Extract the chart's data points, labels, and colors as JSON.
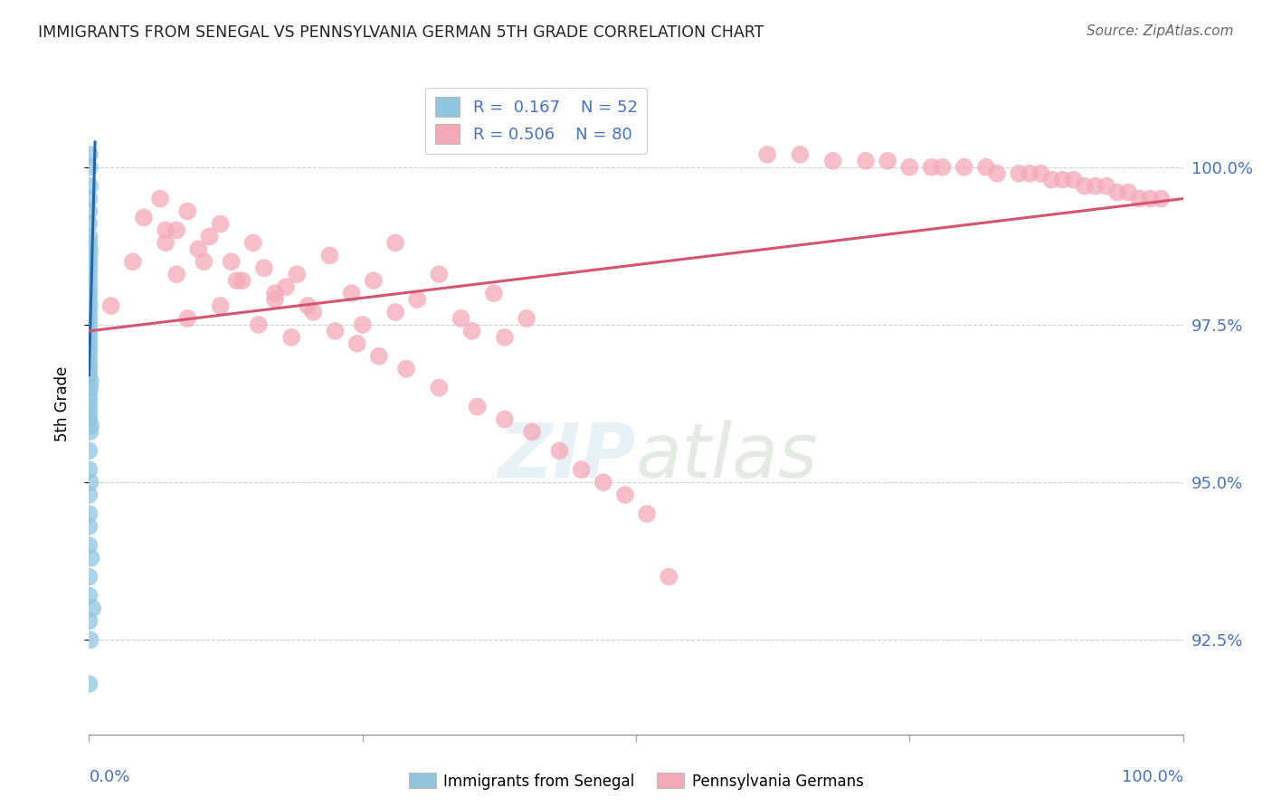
{
  "title": "IMMIGRANTS FROM SENEGAL VS PENNSYLVANIA GERMAN 5TH GRADE CORRELATION CHART",
  "source": "Source: ZipAtlas.com",
  "ylabel": "5th Grade",
  "ylabel_ticks": [
    92.5,
    95.0,
    97.5,
    100.0
  ],
  "ylabel_tick_labels": [
    "92.5%",
    "95.0%",
    "97.5%",
    "100.0%"
  ],
  "xlim": [
    0.0,
    100.0
  ],
  "ylim": [
    91.0,
    101.5
  ],
  "legend_blue_label": "Immigrants from Senegal",
  "legend_pink_label": "Pennsylvania Germans",
  "R_blue": 0.167,
  "N_blue": 52,
  "R_pink": 0.506,
  "N_pink": 80,
  "blue_color": "#92c5de",
  "pink_color": "#f4a9b8",
  "blue_line_color": "#2166ac",
  "pink_line_color": "#d6546e",
  "blue_x": [
    0.05,
    0.05,
    0.08,
    0.02,
    0.0,
    0.0,
    0.03,
    0.0,
    0.06,
    0.04,
    0.0,
    0.01,
    0.0,
    0.0,
    0.02,
    0.0,
    0.0,
    0.03,
    0.0,
    0.01,
    0.0,
    0.0,
    0.0,
    0.01,
    0.0,
    0.0,
    0.0,
    0.02,
    0.0,
    0.12,
    0.08,
    0.0,
    0.01,
    0.0,
    0.0,
    0.0,
    0.15,
    0.07,
    0.0,
    0.0,
    0.09,
    0.0,
    0.01,
    0.0,
    0.0,
    0.18,
    0.0,
    0.0,
    0.32,
    0.01,
    0.11,
    0.0
  ],
  "blue_y": [
    100.2,
    100.0,
    99.7,
    99.5,
    99.3,
    99.1,
    98.9,
    98.8,
    98.7,
    98.6,
    98.5,
    98.4,
    98.3,
    98.2,
    98.1,
    98.0,
    97.9,
    97.8,
    97.7,
    97.6,
    97.5,
    97.4,
    97.3,
    97.2,
    97.1,
    97.0,
    96.9,
    96.8,
    96.7,
    96.6,
    96.5,
    96.4,
    96.3,
    96.2,
    96.1,
    96.0,
    95.9,
    95.8,
    95.5,
    95.2,
    95.0,
    94.8,
    94.5,
    94.3,
    94.0,
    93.8,
    93.5,
    93.2,
    93.0,
    92.8,
    92.5,
    91.8
  ],
  "pink_x": [
    62.0,
    65.0,
    68.0,
    71.0,
    73.0,
    75.0,
    77.0,
    78.0,
    80.0,
    82.0,
    83.0,
    85.0,
    86.0,
    87.0,
    88.0,
    89.0,
    90.0,
    91.0,
    92.0,
    93.0,
    94.0,
    95.0,
    96.0,
    97.0,
    98.0,
    2.0,
    4.0,
    5.0,
    6.5,
    7.0,
    8.0,
    9.0,
    10.0,
    11.0,
    12.0,
    13.0,
    14.0,
    15.0,
    16.0,
    17.0,
    18.0,
    19.0,
    20.0,
    22.0,
    24.0,
    25.0,
    26.0,
    28.0,
    30.0,
    32.0,
    34.0,
    35.0,
    37.0,
    38.0,
    40.0,
    28.0,
    7.0,
    8.0,
    9.0,
    10.5,
    12.0,
    13.5,
    15.5,
    17.0,
    18.5,
    20.5,
    22.5,
    24.5,
    26.5,
    29.0,
    32.0,
    35.5,
    38.0,
    40.5,
    43.0,
    45.0,
    47.0,
    49.0,
    51.0,
    53.0
  ],
  "pink_y": [
    100.2,
    100.2,
    100.1,
    100.1,
    100.1,
    100.0,
    100.0,
    100.0,
    100.0,
    100.0,
    99.9,
    99.9,
    99.9,
    99.9,
    99.8,
    99.8,
    99.8,
    99.7,
    99.7,
    99.7,
    99.6,
    99.6,
    99.5,
    99.5,
    99.5,
    97.8,
    98.5,
    99.2,
    99.5,
    98.8,
    99.0,
    99.3,
    98.7,
    98.9,
    99.1,
    98.5,
    98.2,
    98.8,
    98.4,
    97.9,
    98.1,
    98.3,
    97.8,
    98.6,
    98.0,
    97.5,
    98.2,
    97.7,
    97.9,
    98.3,
    97.6,
    97.4,
    98.0,
    97.3,
    97.6,
    98.8,
    99.0,
    98.3,
    97.6,
    98.5,
    97.8,
    98.2,
    97.5,
    98.0,
    97.3,
    97.7,
    97.4,
    97.2,
    97.0,
    96.8,
    96.5,
    96.2,
    96.0,
    95.8,
    95.5,
    95.2,
    95.0,
    94.8,
    94.5,
    93.5
  ],
  "blue_trend_x": [
    0.0,
    0.55
  ],
  "blue_trend_y": [
    96.7,
    100.4
  ],
  "pink_trend_x": [
    0.0,
    100.0
  ],
  "pink_trend_y": [
    97.4,
    99.5
  ]
}
